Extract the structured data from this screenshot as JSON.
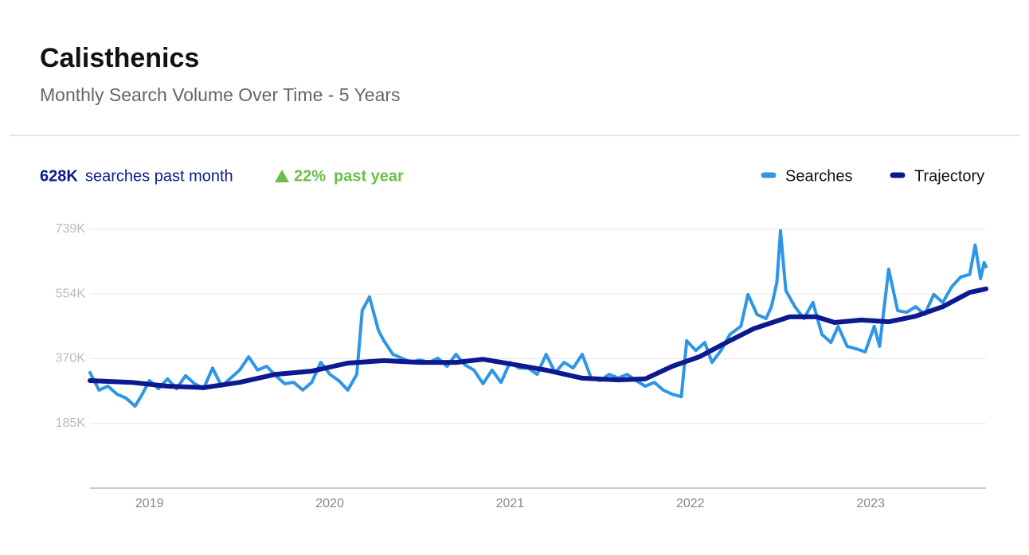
{
  "chart_data": {
    "type": "line",
    "title": "Calisthenics",
    "subtitle": "Monthly Search  Volume Over  Time -  5 Years",
    "summary": {
      "value": "628K",
      "text": "searches past month",
      "change": "22%",
      "change_text": "past year"
    },
    "xlim": [
      2018.67,
      2023.64
    ],
    "xticks": [
      2019,
      2020,
      2021,
      2022,
      2023
    ],
    "ylim": [
      0,
      739000
    ],
    "yticks": [
      {
        "value": 184750,
        "label": "185K"
      },
      {
        "value": 369500,
        "label": "370K"
      },
      {
        "value": 554250,
        "label": "554K"
      },
      {
        "value": 739000,
        "label": "739K"
      }
    ],
    "grid": true,
    "legend": "top-right",
    "series": [
      {
        "name": "Searches",
        "color": "#2e96e6",
        "x": [
          2018.67,
          2018.72,
          2018.77,
          2018.82,
          2018.87,
          2018.92,
          2018.96,
          2019.0,
          2019.05,
          2019.1,
          2019.15,
          2019.2,
          2019.25,
          2019.3,
          2019.35,
          2019.4,
          2019.45,
          2019.5,
          2019.55,
          2019.6,
          2019.65,
          2019.7,
          2019.75,
          2019.8,
          2019.85,
          2019.9,
          2019.95,
          2020.0,
          2020.05,
          2020.1,
          2020.15,
          2020.18,
          2020.22,
          2020.27,
          2020.3,
          2020.35,
          2020.4,
          2020.45,
          2020.5,
          2020.55,
          2020.6,
          2020.65,
          2020.7,
          2020.75,
          2020.8,
          2020.85,
          2020.9,
          2020.95,
          2021.0,
          2021.05,
          2021.1,
          2021.15,
          2021.2,
          2021.25,
          2021.3,
          2021.35,
          2021.4,
          2021.45,
          2021.5,
          2021.55,
          2021.6,
          2021.65,
          2021.7,
          2021.75,
          2021.8,
          2021.85,
          2021.9,
          2021.95,
          2021.98,
          2022.03,
          2022.08,
          2022.12,
          2022.17,
          2022.22,
          2022.28,
          2022.32,
          2022.37,
          2022.42,
          2022.45,
          2022.48,
          2022.5,
          2022.53,
          2022.58,
          2022.63,
          2022.68,
          2022.73,
          2022.78,
          2022.82,
          2022.87,
          2022.92,
          2022.97,
          2023.02,
          2023.05,
          2023.1,
          2023.15,
          2023.2,
          2023.25,
          2023.3,
          2023.35,
          2023.4,
          2023.45,
          2023.5,
          2023.55,
          2023.58,
          2023.61,
          2023.63,
          2023.64
        ],
        "values": [
          330000,
          280000,
          291000,
          268000,
          257000,
          234000,
          268000,
          307000,
          284000,
          312000,
          284000,
          321000,
          298000,
          284000,
          343000,
          291000,
          314000,
          337000,
          375000,
          337000,
          348000,
          321000,
          298000,
          302000,
          280000,
          302000,
          359000,
          325000,
          307000,
          280000,
          325000,
          507000,
          546000,
          450000,
          421000,
          382000,
          371000,
          359000,
          366000,
          359000,
          371000,
          348000,
          382000,
          352000,
          337000,
          298000,
          337000,
          302000,
          359000,
          343000,
          343000,
          325000,
          382000,
          330000,
          359000,
          343000,
          382000,
          314000,
          307000,
          325000,
          314000,
          325000,
          307000,
          291000,
          302000,
          280000,
          268000,
          261000,
          421000,
          393000,
          416000,
          359000,
          393000,
          439000,
          462000,
          553000,
          496000,
          484000,
          518000,
          587000,
          735000,
          564000,
          518000,
          484000,
          530000,
          439000,
          416000,
          462000,
          405000,
          398000,
          389000,
          462000,
          405000,
          625000,
          507000,
          502000,
          518000,
          496000,
          553000,
          530000,
          575000,
          603000,
          610000,
          694000,
          598000,
          644000,
          632000
        ]
      },
      {
        "name": "Trajectory",
        "color": "#0d1a8f",
        "x": [
          2018.67,
          2018.9,
          2019.1,
          2019.3,
          2019.5,
          2019.7,
          2019.9,
          2020.1,
          2020.3,
          2020.5,
          2020.7,
          2020.85,
          2021.0,
          2021.2,
          2021.4,
          2021.6,
          2021.75,
          2021.9,
          2022.05,
          2022.2,
          2022.35,
          2022.55,
          2022.7,
          2022.8,
          2022.95,
          2023.1,
          2023.25,
          2023.4,
          2023.55,
          2023.64
        ],
        "values": [
          307000,
          302000,
          291000,
          287000,
          302000,
          325000,
          334000,
          357000,
          364000,
          359000,
          359000,
          368000,
          355000,
          337000,
          314000,
          309000,
          312000,
          348000,
          375000,
          416000,
          455000,
          489000,
          489000,
          473000,
          480000,
          475000,
          491000,
          518000,
          559000,
          569000
        ]
      }
    ]
  }
}
